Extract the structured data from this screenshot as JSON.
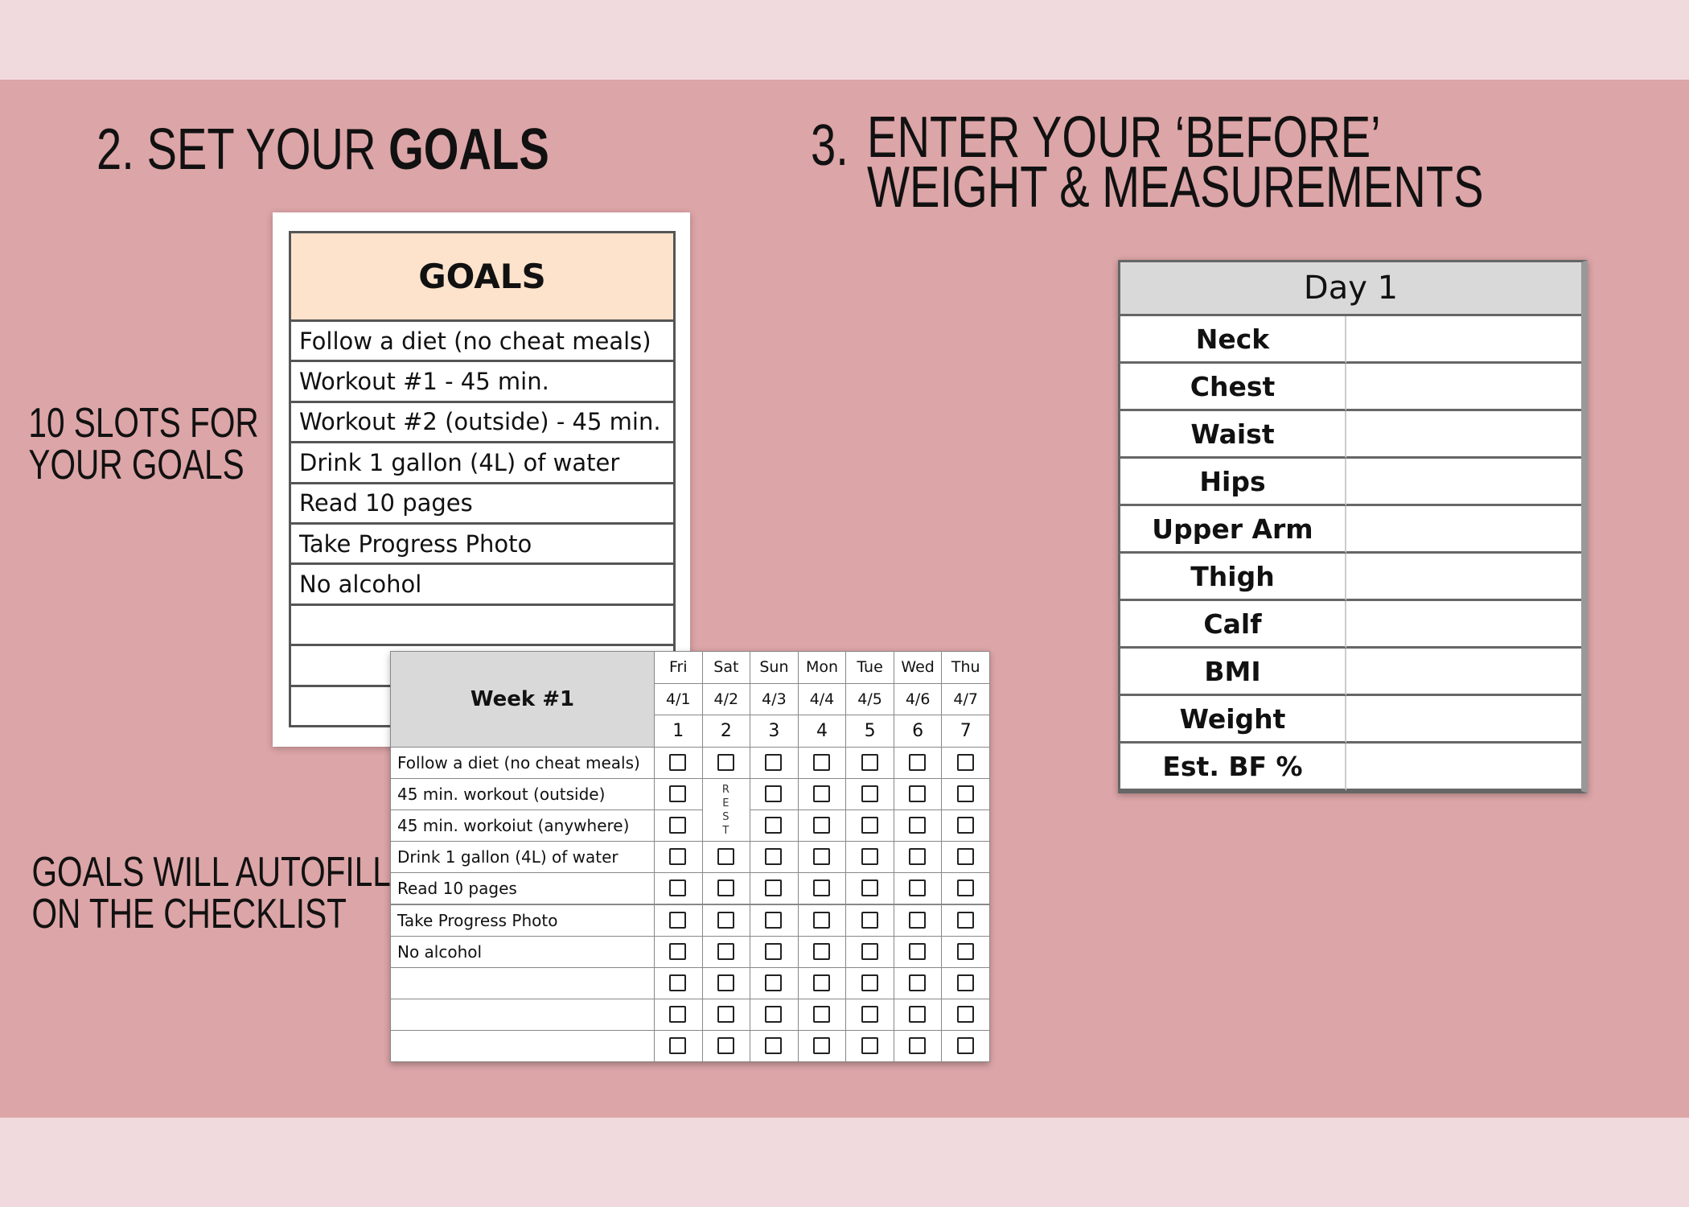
{
  "step2": {
    "number": "2.",
    "title": "SET YOUR ",
    "title_bold": "GOALS"
  },
  "step3": {
    "number": "3.",
    "title_lines": [
      "ENTER YOUR ‘BEFORE’",
      "WEIGHT & MEASUREMENTS"
    ]
  },
  "notes": [
    {
      "lines": [
        "10 SLOTS FOR",
        "YOUR GOALS"
      ]
    },
    {
      "lines": [
        "GOALS WILL AUTOFILL",
        "ON THE CHECKLIST"
      ]
    }
  ],
  "goals_table": {
    "header": "GOALS",
    "rows": [
      "Follow a diet (no cheat meals)",
      "Workout #1 - 45 min.",
      "Workout #2 (outside) - 45 min.",
      "Drink 1 gallon (4L) of water",
      "Read 10 pages",
      "Take Progress Photo",
      "No alcohol"
    ]
  },
  "week_table": {
    "title": "Week #1",
    "days": [
      "Fri",
      "Sat",
      "Sun",
      "Mon",
      "Tue",
      "Wed",
      "Thu"
    ],
    "dates": [
      "4/1",
      "4/2",
      "4/3",
      "4/4",
      "4/5",
      "4/6",
      "4/7"
    ],
    "day_numbers": [
      1,
      2,
      3,
      4,
      5,
      6,
      7
    ],
    "rows": [
      "Follow a diet (no cheat meals)",
      "45 min. workout (outside)",
      "45 min. workoiut (anywhere)",
      "Drink 1 gallon (4L) of water",
      "Read 10 pages",
      "Take Progress Photo",
      "No alcohol"
    ],
    "rest_label": "REST"
  },
  "measurements_table": {
    "header": "Day 1",
    "rows": [
      "Neck",
      "Chest",
      "Waist",
      "Hips",
      "Upper Arm",
      "Thigh",
      "Calf",
      "BMI",
      "Weight",
      "Est. BF %"
    ]
  }
}
